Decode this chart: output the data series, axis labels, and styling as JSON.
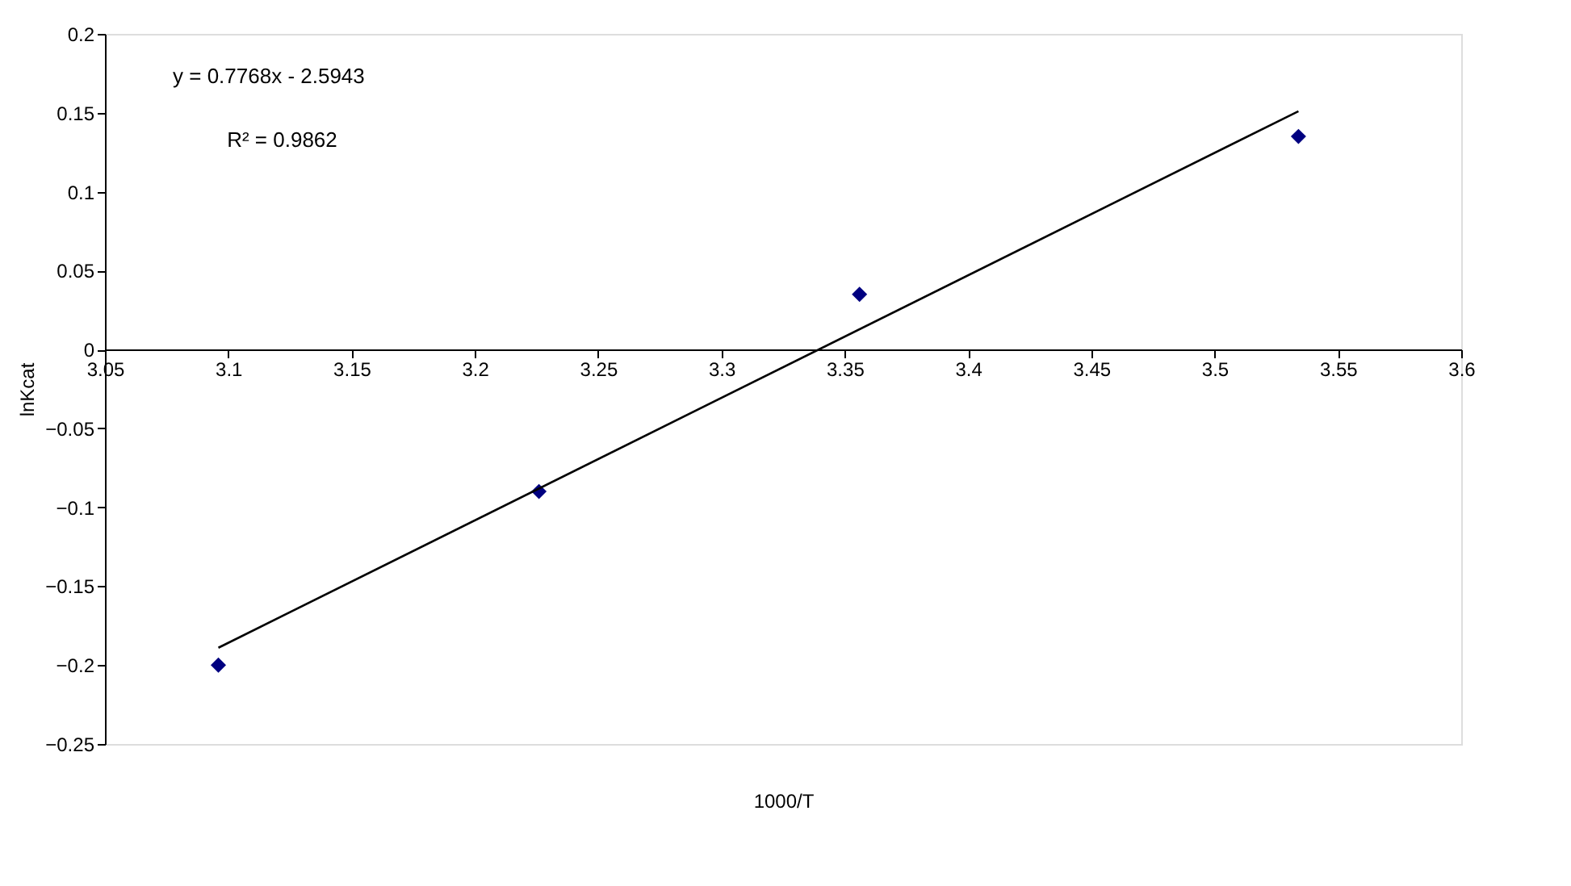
{
  "chart_data": {
    "type": "scatter",
    "xlabel": "1000/T",
    "ylabel": "lnKcat",
    "x": [
      3.096,
      3.226,
      3.356,
      3.534
    ],
    "values": [
      -0.2,
      -0.09,
      0.035,
      0.135
    ],
    "color": "#000080",
    "marker": "diamond",
    "series": [
      {
        "type": "line",
        "x": [
          3.096,
          3.534
        ],
        "values": [
          -0.189,
          0.151
        ],
        "color": "#000000",
        "line_style": "solid",
        "marker": "none"
      }
    ],
    "xlim": [
      3.05,
      3.6
    ],
    "xticks": [
      3.05,
      3.1,
      3.15,
      3.2,
      3.25,
      3.3,
      3.35,
      3.4,
      3.45,
      3.5,
      3.55,
      3.6
    ],
    "ylim": [
      -0.25,
      0.2
    ],
    "yticks": [
      -0.25,
      -0.2,
      -0.15,
      -0.1,
      -0.05,
      0,
      0.05,
      0.1,
      0.15,
      0.2
    ],
    "grid": false,
    "annotations": [
      "y = 0.7768x - 2.5943",
      "R² = 0.9862"
    ]
  }
}
